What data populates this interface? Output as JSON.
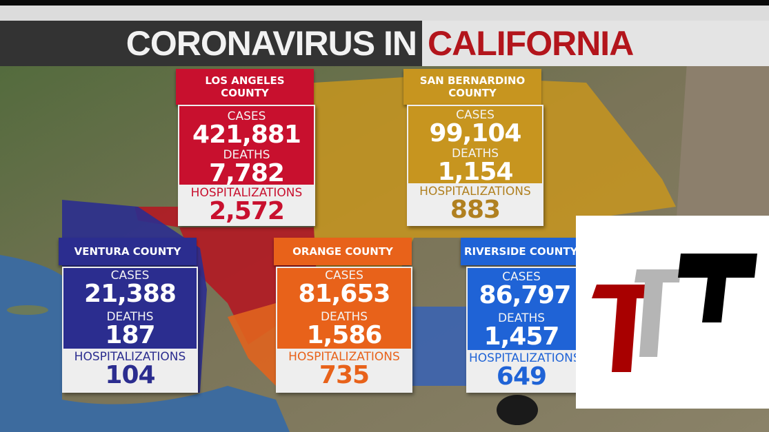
{
  "title": {
    "part1": "CORONAVIRUS IN",
    "part2": "CALIFORNIA"
  },
  "labels": {
    "cases": "CASES",
    "deaths": "DEATHS",
    "hospitalizations": "HOSPITALIZATIONS"
  },
  "counties": {
    "los_angeles": {
      "name": "LOS ANGELES COUNTY",
      "cases": "421,881",
      "deaths": "7,782",
      "hospitalizations": "2,572",
      "color": "#c8102e"
    },
    "san_bernardino": {
      "name": "SAN BERNARDINO COUNTY",
      "cases": "99,104",
      "deaths": "1,154",
      "hospitalizations": "883",
      "color": "#c7951f"
    },
    "ventura": {
      "name": "VENTURA COUNTY",
      "cases": "21,388",
      "deaths": "187",
      "hospitalizations": "104",
      "color": "#2b2d8f"
    },
    "orange": {
      "name": "ORANGE COUNTY",
      "cases": "81,653",
      "deaths": "1,586",
      "hospitalizations": "735",
      "color": "#e8621a"
    },
    "riverside": {
      "name": "RIVERSIDE COUNTY",
      "cases": "86,797",
      "deaths": "1,457",
      "hospitalizations": "649",
      "color": "#1f63d6"
    }
  },
  "logo": {
    "icon": "ttt-logo",
    "colors": [
      "#a80000",
      "#b5b5b5",
      "#000000"
    ]
  }
}
